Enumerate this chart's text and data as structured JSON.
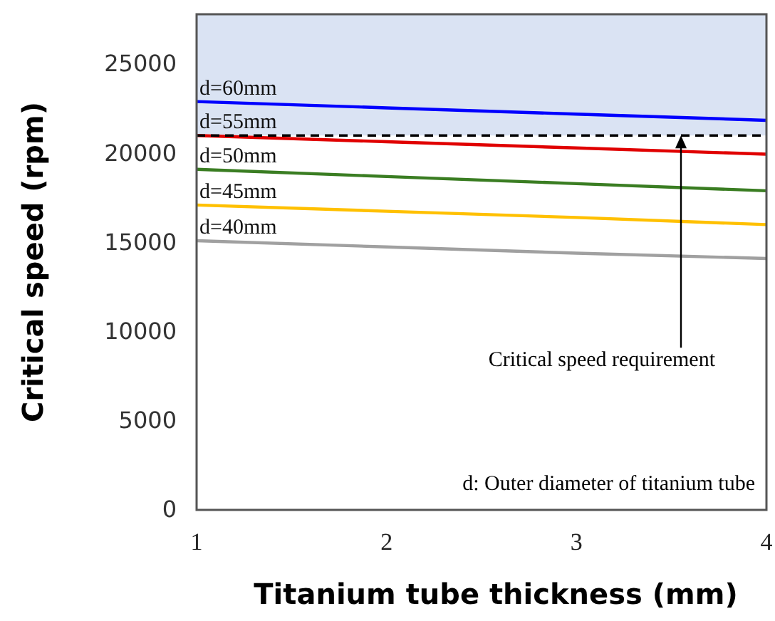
{
  "chart_data": {
    "type": "line",
    "xlabel": "Titanium tube thickness (mm)",
    "ylabel": "Critical speed (rpm)",
    "x": [
      1,
      2,
      3,
      4
    ],
    "xlim": [
      1,
      4
    ],
    "xticks": [
      1,
      2,
      3,
      4
    ],
    "ylim": [
      0,
      27800
    ],
    "yticks": [
      0,
      5000,
      10000,
      15000,
      20000,
      25000
    ],
    "grid": false,
    "marker": "none",
    "line_style": "solid",
    "series": [
      {
        "name": "d=60mm",
        "color": "#0000ff",
        "values": [
          22900,
          22550,
          22200,
          21850
        ]
      },
      {
        "name": "d=55mm",
        "color": "#e00000",
        "values": [
          21000,
          20650,
          20300,
          19950
        ]
      },
      {
        "name": "d=50mm",
        "color": "#3a7d22",
        "values": [
          19100,
          18700,
          18300,
          17900
        ]
      },
      {
        "name": "d=45mm",
        "color": "#ffc000",
        "values": [
          17100,
          16750,
          16400,
          16000
        ]
      },
      {
        "name": "d=40mm",
        "color": "#a0a0a0",
        "values": [
          15100,
          14750,
          14400,
          14100
        ]
      }
    ],
    "ref_lines": [
      {
        "axis": "y",
        "value": 21000,
        "color": "#000000",
        "line_style": "dashed"
      }
    ],
    "bands": [
      {
        "axis": "y",
        "from": 21000,
        "to": 27800,
        "color": "#dae3f3"
      }
    ],
    "annotations": [
      {
        "text": "Critical speed requirement",
        "x": 3.55,
        "y": 21000
      },
      "d: Outer diameter of titanium tube"
    ]
  }
}
